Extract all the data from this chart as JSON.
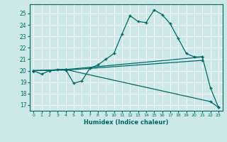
{
  "xlabel": "Humidex (Indice chaleur)",
  "bg_color": "#cce8e8",
  "grid_color": "#ffffff",
  "line_color": "#006868",
  "xlim": [
    -0.5,
    23.5
  ],
  "ylim": [
    16.5,
    25.8
  ],
  "yticks": [
    17,
    18,
    19,
    20,
    21,
    22,
    23,
    24,
    25
  ],
  "xticks": [
    0,
    1,
    2,
    3,
    4,
    5,
    6,
    7,
    8,
    9,
    10,
    11,
    12,
    13,
    14,
    15,
    16,
    17,
    18,
    19,
    20,
    21,
    22,
    23
  ],
  "series": [
    {
      "x": [
        0,
        1,
        2,
        3,
        4,
        5,
        6,
        7,
        8,
        9,
        10,
        11,
        12,
        13,
        14,
        15,
        16,
        17,
        18,
        19,
        20,
        21,
        22,
        23
      ],
      "y": [
        20.0,
        19.7,
        20.0,
        20.1,
        20.1,
        18.9,
        19.1,
        20.2,
        20.5,
        21.0,
        21.5,
        23.2,
        24.8,
        24.3,
        24.2,
        25.3,
        24.9,
        24.1,
        22.8,
        21.5,
        21.2,
        21.2,
        18.5,
        16.8
      ]
    },
    {
      "x": [
        0,
        4,
        21
      ],
      "y": [
        20.0,
        20.1,
        21.2
      ]
    },
    {
      "x": [
        0,
        4,
        21
      ],
      "y": [
        20.0,
        20.05,
        20.9
      ]
    },
    {
      "x": [
        0,
        4,
        22,
        23
      ],
      "y": [
        20.0,
        20.1,
        17.3,
        16.8
      ]
    }
  ]
}
